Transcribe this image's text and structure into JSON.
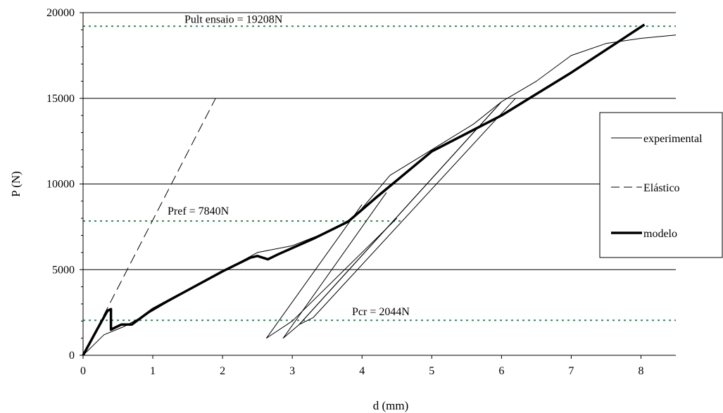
{
  "chart_data": {
    "type": "line",
    "xlabel": "d (mm)",
    "ylabel": "P (N)",
    "xlim": [
      0,
      8.5
    ],
    "ylim": [
      0,
      20000
    ],
    "xticks": [
      0,
      1,
      2,
      3,
      4,
      5,
      6,
      7,
      8
    ],
    "yticks": [
      0,
      5000,
      10000,
      15000,
      20000
    ],
    "grid": "horizontal",
    "legend_position": "right",
    "series": [
      {
        "name": "experimental",
        "style": "thin-solid",
        "color": "#000000",
        "x": [
          0,
          0.3,
          0.6,
          1.0,
          1.5,
          2.0,
          2.5,
          3.0,
          3.5,
          3.9,
          4.4,
          5.0,
          5.6,
          6.0,
          6.5,
          7.0,
          7.5,
          8.0,
          8.5,
          8.5
        ],
        "y": [
          0,
          1200,
          1700,
          2600,
          3800,
          4900,
          6000,
          6400,
          7200,
          8100,
          10500,
          12000,
          13500,
          14800,
          16000,
          17500,
          18200,
          18500,
          18700,
          18700
        ],
        "extra_paths": [
          {
            "x": [
              4.0,
              2.63,
              3.0,
              4.5
            ],
            "y": [
              8800,
              1000,
              2000,
              8000
            ]
          },
          {
            "x": [
              4.35,
              2.87,
              3.1,
              6.0
            ],
            "y": [
              9500,
              1000,
              1800,
              14800
            ]
          },
          {
            "x": [
              6.0,
              3.1,
              3.3,
              6.2
            ],
            "y": [
              14800,
              1800,
              2200,
              15000
            ]
          }
        ]
      },
      {
        "name": "Elástico",
        "style": "dashed",
        "color": "#000000",
        "x": [
          0,
          1.9
        ],
        "y": [
          0,
          15000
        ]
      },
      {
        "name": "modelo",
        "style": "thick-solid",
        "color": "#000000",
        "x": [
          0,
          0.2,
          0.35,
          0.4,
          0.4,
          0.45,
          0.55,
          0.7,
          1.0,
          1.5,
          2.0,
          2.4,
          2.5,
          2.65,
          2.8,
          3.3,
          3.8,
          4.2,
          5.0,
          6.0,
          7.0,
          8.05
        ],
        "y": [
          0,
          1500,
          2600,
          2700,
          1500,
          1600,
          1800,
          1800,
          2700,
          3800,
          4900,
          5700,
          5800,
          5600,
          5900,
          6800,
          7800,
          9200,
          11900,
          14000,
          16500,
          19300
        ]
      }
    ],
    "reference_lines": [
      {
        "label": "Pult ensaio = 19208N",
        "y": 19208,
        "color": "#2e8b57"
      },
      {
        "label": "Pref = 7840N",
        "y": 7840,
        "x_end": 4.6,
        "color": "#2e8b57"
      },
      {
        "label": "Pcr = 2044N",
        "y": 2044,
        "color": "#2e8b57"
      }
    ]
  }
}
